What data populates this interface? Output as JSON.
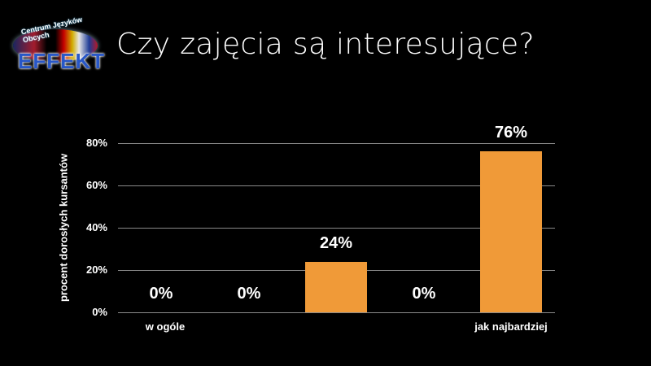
{
  "title": "Czy zajęcia są interesujące?",
  "logo": {
    "top_text": "Centrum Języków Obcych",
    "brand": "EFFEKT"
  },
  "chart_data": {
    "type": "bar",
    "title": "Czy zajęcia są interesujące?",
    "categories": [
      "w ogóle",
      "",
      "",
      "",
      "jak najbardziej"
    ],
    "values": [
      0,
      0,
      24,
      0,
      76
    ],
    "value_labels": [
      "0%",
      "0%",
      "24%",
      "0%",
      "76%"
    ],
    "xlabel": "",
    "ylabel": "procent dorosłych kursantów",
    "ylim": [
      0,
      80
    ],
    "yticks": [
      "0%",
      "20%",
      "40%",
      "60%",
      "80%"
    ],
    "grid": true,
    "bar_color": "#f09a38",
    "background": "#000000"
  }
}
